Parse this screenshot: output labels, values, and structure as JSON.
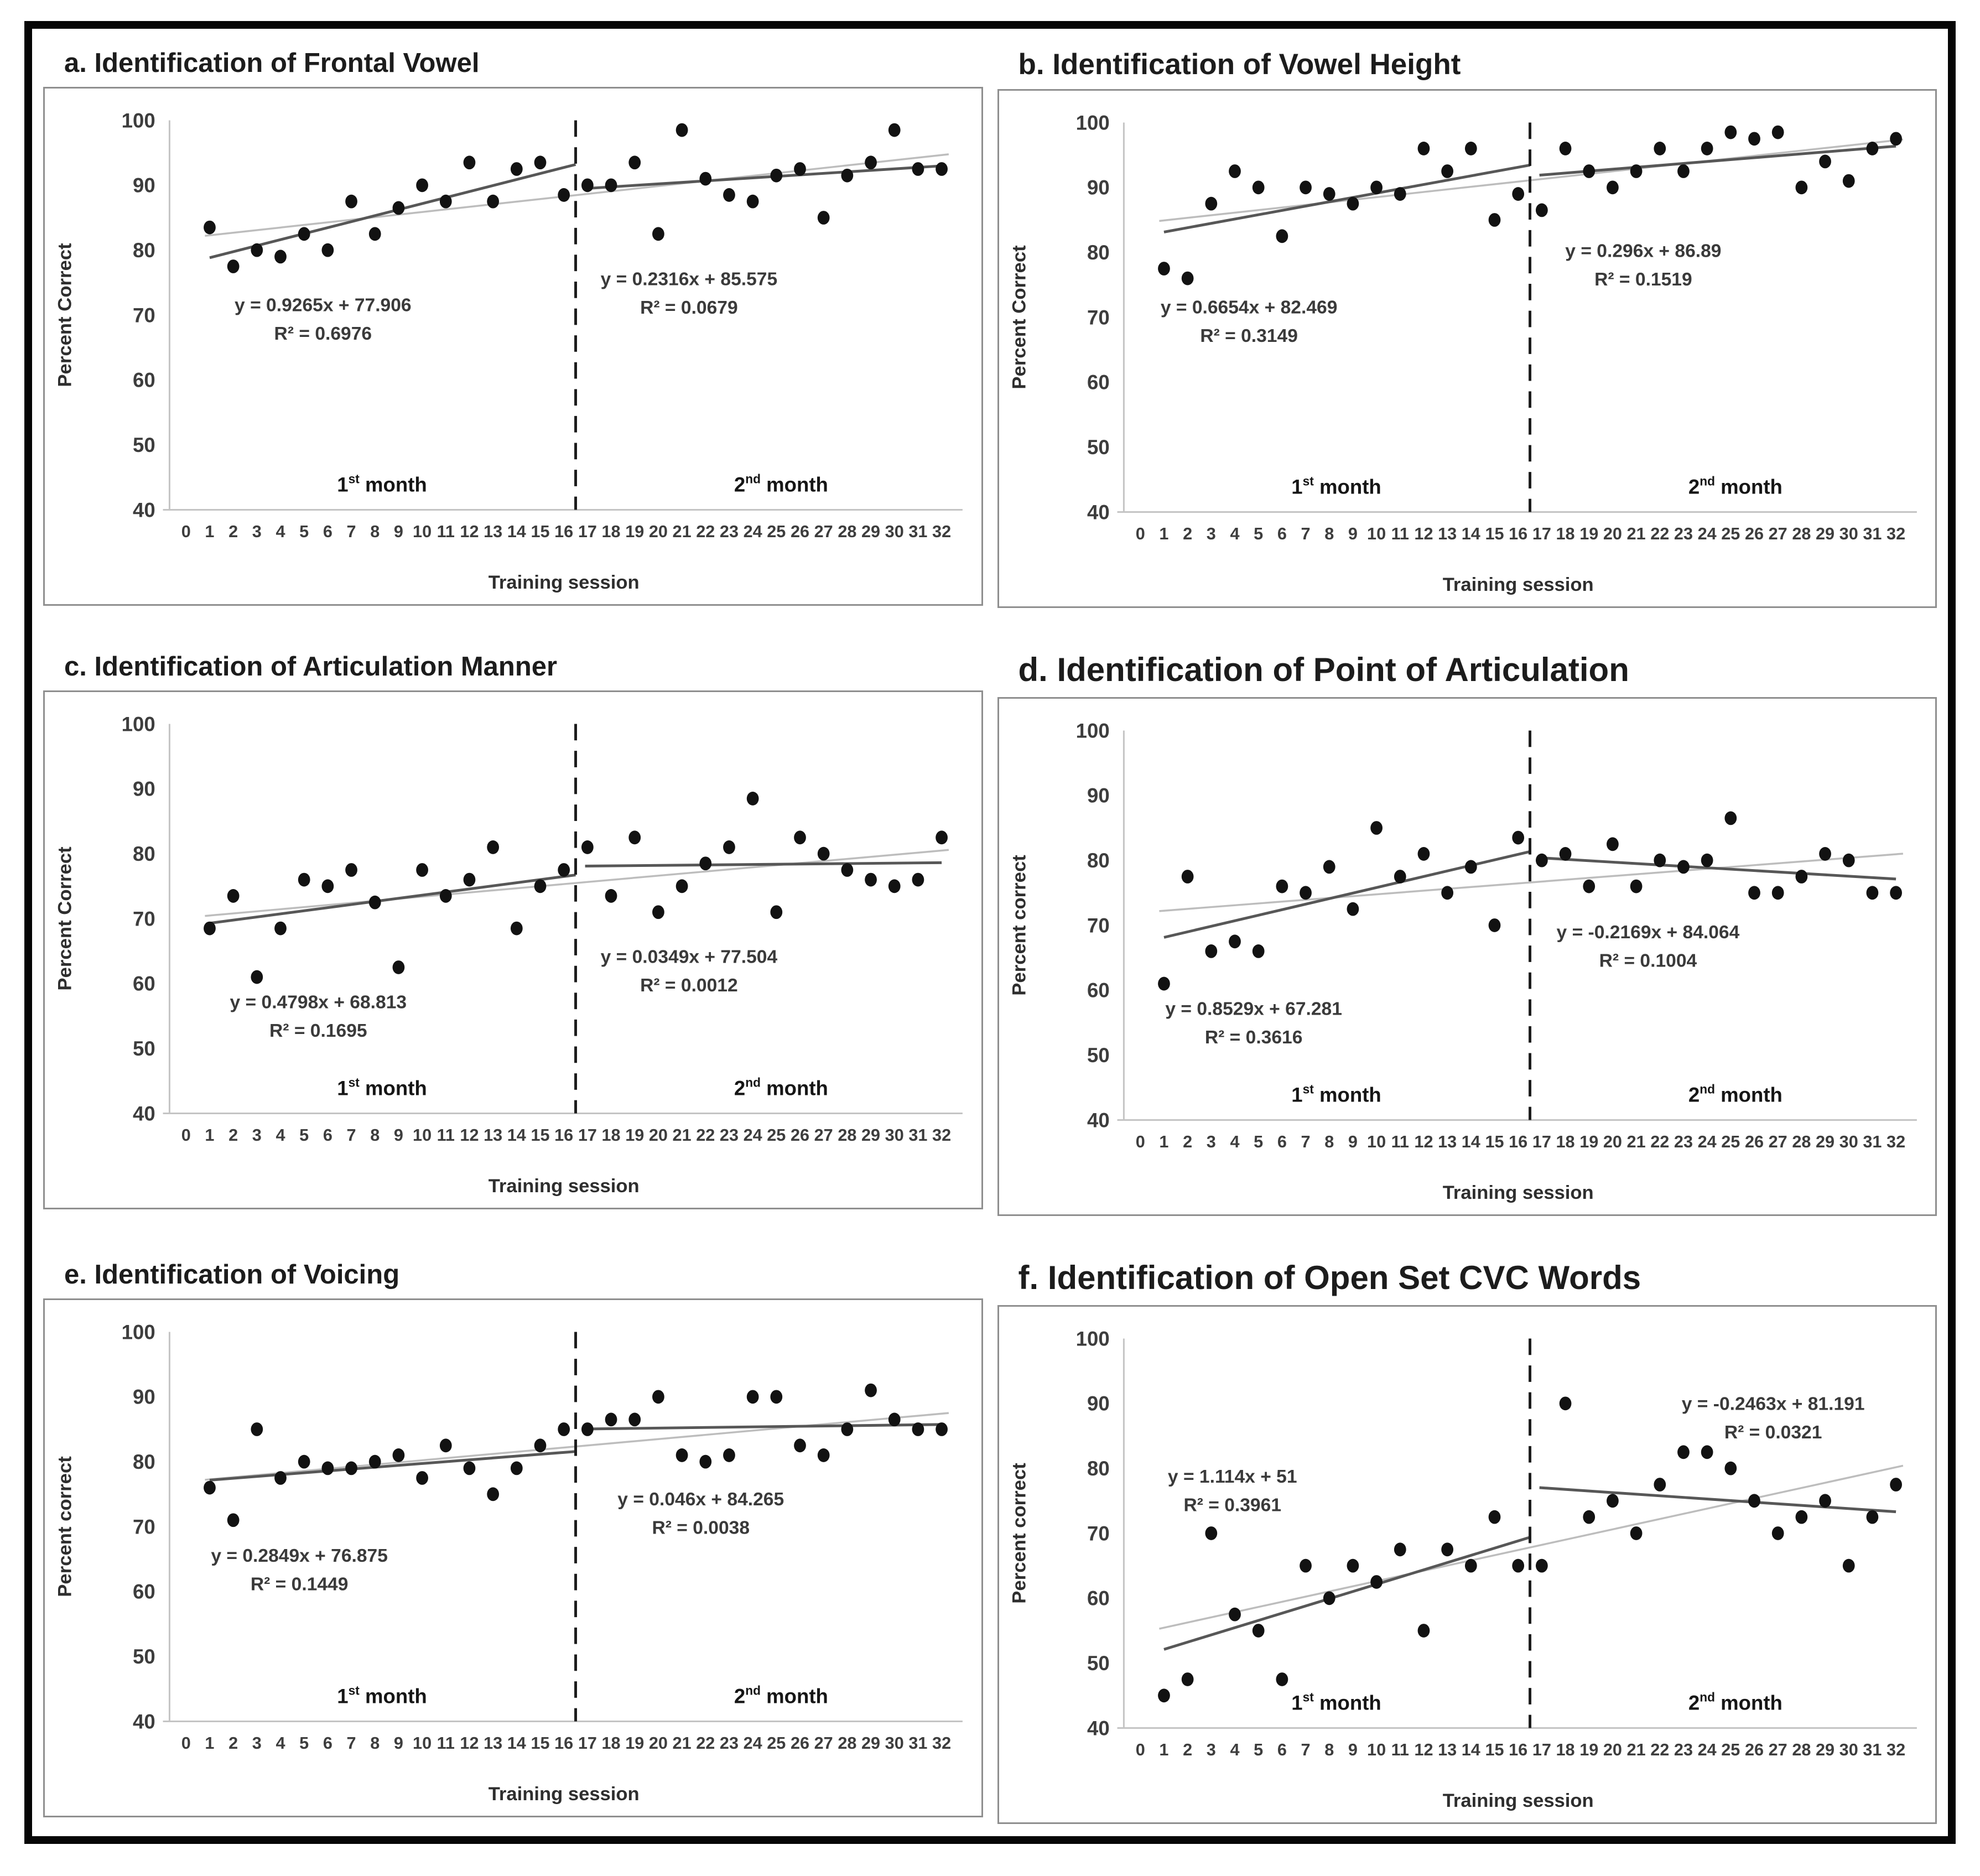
{
  "figure": {
    "outer_border_color": "#060606",
    "month_labels": [
      {
        "num": "1",
        "sup": "st",
        "word": " month",
        "x": 8.3
      },
      {
        "num": "2",
        "sup": "nd",
        "word": " month",
        "x": 25.2
      }
    ],
    "palette": {
      "point": "#121212",
      "fit_dark": "#575757",
      "fit_light": "#bdbdbd",
      "divider": "#1c1c1c",
      "axis_line": "#c4c4c4",
      "tick_text": "#3d3d3d",
      "equation_text": "#3a3a3a",
      "title_text": "#1c1c1c"
    },
    "axes": {
      "x_tick_min": 0,
      "x_tick_max": 32,
      "x_tick_step": 1,
      "y_ticks": [
        40,
        50,
        60,
        70,
        80,
        90,
        100
      ]
    }
  },
  "chart_data": [
    {
      "id": "a",
      "type": "scatter",
      "title": "a. Identification of Frontal Vowel",
      "xlabel": "Training session",
      "ylabel": "Percent Correct",
      "xlim": [
        0,
        32
      ],
      "ylim": [
        40,
        100
      ],
      "divider_x": 16.5,
      "x_start": 1,
      "values": [
        83.5,
        77.5,
        80,
        79,
        82.5,
        80,
        87.5,
        82.5,
        86.5,
        90,
        87.5,
        93.5,
        87.5,
        92.5,
        93.5,
        88.5,
        90,
        90,
        93.5,
        82.5,
        98.5,
        91,
        88.5,
        87.5,
        91.5,
        92.5,
        85,
        91.5,
        93.5,
        98.5,
        92.5,
        92.5
      ],
      "fits": [
        {
          "equation": "y = 0.9265x + 77.906",
          "r2": "R² = 0.6976",
          "slope": 0.9265,
          "intercept": 77.906,
          "x_range": [
            1,
            16.5
          ],
          "label_pos": [
            5.8,
            70.6
          ]
        },
        {
          "equation": "y = 0.2316x + 85.575",
          "r2": "R² = 0.0679",
          "slope": 0.2316,
          "intercept": 85.575,
          "x_range": [
            16.9,
            32
          ],
          "label_pos": [
            21.3,
            74.6
          ]
        }
      ]
    },
    {
      "id": "b",
      "type": "scatter",
      "title": "b. Identification of Vowel Height",
      "xlabel": "Training session",
      "ylabel": "Percent Correct",
      "xlim": [
        0,
        32
      ],
      "ylim": [
        40,
        100
      ],
      "divider_x": 16.5,
      "x_start": 1,
      "values": [
        77.5,
        76,
        87.5,
        92.5,
        90,
        82.5,
        90,
        89,
        87.5,
        90,
        89,
        96,
        92.5,
        96,
        85,
        89,
        86.5,
        96,
        92.5,
        90,
        92.5,
        96,
        92.5,
        96,
        98.5,
        97.5,
        98.5,
        90,
        94,
        91,
        96,
        97.5
      ],
      "fits": [
        {
          "equation": "y = 0.6654x + 82.469",
          "r2": "R² = 0.3149",
          "slope": 0.6654,
          "intercept": 82.469,
          "x_range": [
            1,
            16.5
          ],
          "label_pos": [
            4.6,
            70.6
          ]
        },
        {
          "equation": "y = 0.296x + 86.89",
          "r2": "R² = 0.1519",
          "slope": 0.296,
          "intercept": 86.89,
          "x_range": [
            16.9,
            32
          ],
          "label_pos": [
            21.3,
            79.3
          ]
        }
      ]
    },
    {
      "id": "c",
      "type": "scatter",
      "title": "c. Identification of Articulation Manner",
      "xlabel": "Training session",
      "ylabel": "Percent Correct",
      "xlim": [
        0,
        32
      ],
      "ylim": [
        40,
        100
      ],
      "divider_x": 16.5,
      "x_start": 1,
      "values": [
        68.5,
        73.5,
        61,
        68.5,
        76,
        75,
        77.5,
        72.5,
        62.5,
        77.5,
        73.5,
        76,
        81,
        68.5,
        75,
        77.5,
        81,
        73.5,
        82.5,
        71,
        75,
        78.5,
        81,
        88.5,
        71,
        82.5,
        80,
        77.5,
        76,
        75,
        76,
        82.5
      ],
      "fits": [
        {
          "equation": "y = 0.4798x + 68.813",
          "r2": "R² = 0.1695",
          "slope": 0.4798,
          "intercept": 68.813,
          "x_range": [
            1,
            16.5
          ],
          "label_pos": [
            5.6,
            56.2
          ]
        },
        {
          "equation": "y = 0.0349x + 77.504",
          "r2": "R² = 0.0012",
          "slope": 0.0349,
          "intercept": 77.504,
          "x_range": [
            16.9,
            32
          ],
          "label_pos": [
            21.3,
            63.2
          ]
        }
      ]
    },
    {
      "id": "d",
      "type": "scatter",
      "title": "d. Identification of Point of Articulation",
      "xlabel": "Training session",
      "ylabel": "Percent correct",
      "xlim": [
        0,
        32
      ],
      "ylim": [
        40,
        100
      ],
      "divider_x": 16.5,
      "x_start": 1,
      "values": [
        61,
        77.5,
        66,
        67.5,
        66,
        76,
        75,
        79,
        72.5,
        85,
        77.5,
        81,
        75,
        79,
        70,
        83.5,
        80,
        81,
        76,
        82.5,
        76,
        80,
        79,
        80,
        86.5,
        75,
        75,
        77.5,
        81,
        80,
        75,
        75
      ],
      "fits": [
        {
          "equation": "y = 0.8529x + 67.281",
          "r2": "R² = 0.3616",
          "slope": 0.8529,
          "intercept": 67.281,
          "x_range": [
            1,
            16.5
          ],
          "label_pos": [
            4.8,
            56.2
          ]
        },
        {
          "equation": "y = -0.2169x + 84.064",
          "r2": "R² = 0.1004",
          "slope": -0.2169,
          "intercept": 84.064,
          "x_range": [
            16.9,
            32
          ],
          "label_pos": [
            21.5,
            68.0
          ]
        }
      ]
    },
    {
      "id": "e",
      "type": "scatter",
      "title": "e. Identification of Voicing",
      "xlabel": "Training session",
      "ylabel": "Percent correct",
      "xlim": [
        0,
        32
      ],
      "ylim": [
        40,
        100
      ],
      "divider_x": 16.5,
      "x_start": 1,
      "values": [
        76,
        71,
        85,
        77.5,
        80,
        79,
        79,
        80,
        81,
        77.5,
        82.5,
        79,
        75,
        79,
        82.5,
        85,
        85,
        86.5,
        86.5,
        90,
        81,
        80,
        81,
        90,
        90,
        82.5,
        81,
        85,
        91,
        86.5,
        85,
        85
      ],
      "fits": [
        {
          "equation": "y = 0.2849x + 76.875",
          "r2": "R² = 0.1449",
          "slope": 0.2849,
          "intercept": 76.875,
          "x_range": [
            1,
            16.5
          ],
          "label_pos": [
            4.8,
            64.6
          ]
        },
        {
          "equation": "y = 0.046x + 84.265",
          "r2": "R² = 0.0038",
          "slope": 0.046,
          "intercept": 84.265,
          "x_range": [
            16.9,
            32
          ],
          "label_pos": [
            21.8,
            73.3
          ]
        }
      ]
    },
    {
      "id": "f",
      "type": "scatter",
      "title": "f. Identification of Open Set CVC Words",
      "xlabel": "Training session",
      "ylabel": "Percent correct",
      "xlim": [
        0,
        32
      ],
      "ylim": [
        40,
        100
      ],
      "divider_x": 16.5,
      "x_start": 1,
      "values": [
        45,
        47.5,
        70,
        57.5,
        55,
        47.5,
        65,
        60,
        65,
        62.5,
        67.5,
        55,
        67.5,
        65,
        72.5,
        65,
        65,
        90,
        72.5,
        75,
        70,
        77.5,
        82.5,
        82.5,
        80,
        75,
        70,
        72.5,
        75,
        65,
        72.5,
        77.5
      ],
      "fits": [
        {
          "equation": "y = 1.114x + 51",
          "r2": "R² = 0.3961",
          "slope": 1.114,
          "intercept": 51,
          "x_range": [
            1,
            16.5
          ],
          "label_pos": [
            3.9,
            77.8
          ]
        },
        {
          "equation": "y = -0.2463x + 81.191",
          "r2": "R² = 0.0321",
          "slope": -0.2463,
          "intercept": 81.191,
          "x_range": [
            16.9,
            32
          ],
          "label_pos": [
            26.8,
            89.0
          ]
        }
      ]
    }
  ]
}
